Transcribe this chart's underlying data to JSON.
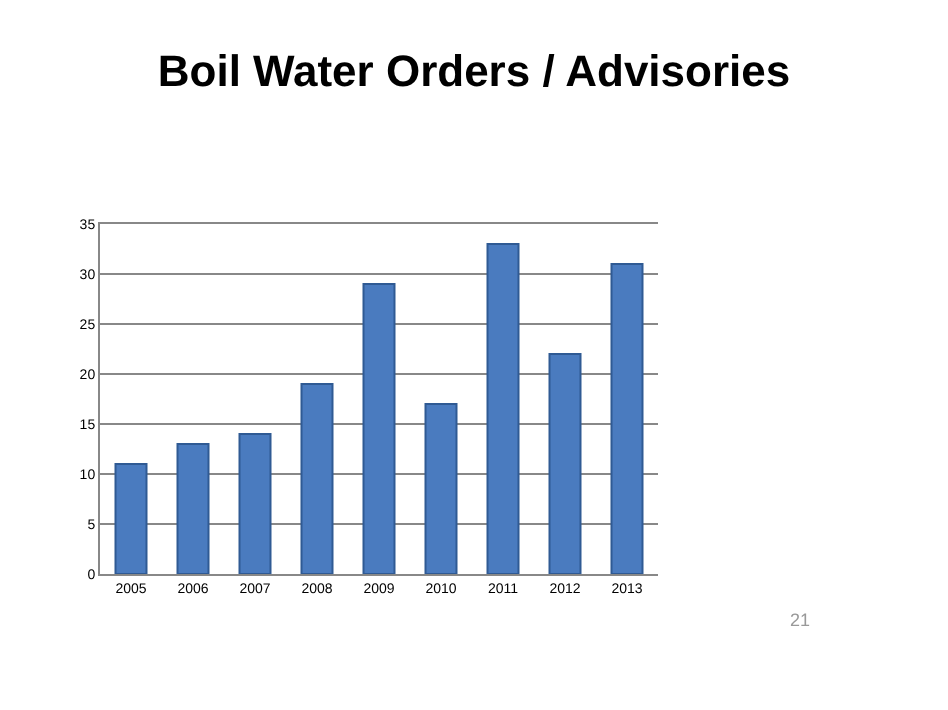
{
  "chart_data": {
    "type": "bar",
    "title": "Boil Water Orders / Advisories",
    "categories": [
      "2005",
      "2006",
      "2007",
      "2008",
      "2009",
      "2010",
      "2011",
      "2012",
      "2013"
    ],
    "values": [
      11,
      13,
      14,
      19,
      29,
      17,
      33,
      22,
      31
    ],
    "color": "#4a7bbf",
    "ylim": [
      0,
      35
    ],
    "yticks": [
      0,
      5,
      10,
      15,
      20,
      25,
      30,
      35
    ],
    "grid": "y",
    "annotations": [
      "21"
    ]
  }
}
